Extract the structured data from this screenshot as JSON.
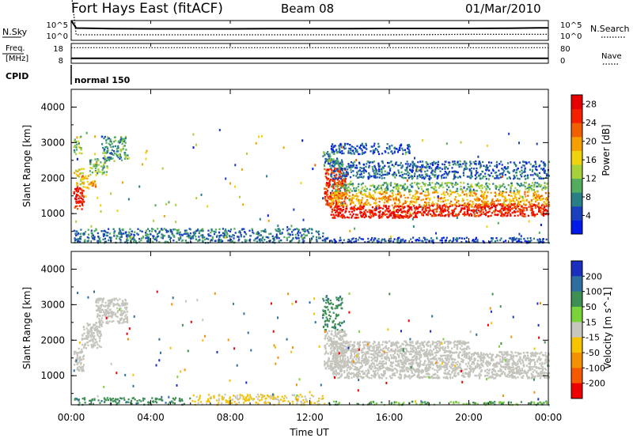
{
  "header": {
    "station": "Fort Hays East (fitACF)",
    "beam": "Beam 08",
    "date": "01/Mar/2010"
  },
  "noise_panel": {
    "left_label": "N.Sky",
    "right_label": "N.Search",
    "left_ticks": [
      "10^5",
      "10^0"
    ],
    "right_ticks": [
      "10^5",
      "10^0"
    ]
  },
  "freq_panel": {
    "left_label_1": "Freq.",
    "left_label_2": "[MHz]",
    "right_label": "Nave",
    "left_ticks": [
      "18",
      "8"
    ],
    "right_ticks": [
      "80",
      "0"
    ]
  },
  "cpid_panel": {
    "label": "CPID",
    "mode_text": "normal 150"
  },
  "colors": {
    "power": [
      "#0019e8",
      "#1a3fbf",
      "#2a7f86",
      "#53ad5e",
      "#a6d13a",
      "#f0d20f",
      "#f5a000",
      "#f06000",
      "#f52000",
      "#e80000"
    ],
    "velocity": [
      "#1a2fbf",
      "#2f6fa0",
      "#3f8f55",
      "#7ad33a",
      "#c7c7c0",
      "#f5c300",
      "#f59000",
      "#f55a00",
      "#ee0000"
    ],
    "ground_scatter": "#c4c4bc"
  },
  "chart_data": [
    {
      "type": "line",
      "name": "noise",
      "x_range_hours": [
        0,
        24
      ],
      "series": [
        {
          "name": "N.Sky",
          "x": [
            0,
            0.25,
            2,
            4,
            6,
            8,
            10,
            12,
            14,
            16,
            18,
            20,
            22,
            23.5,
            24
          ],
          "values": [
            10,
            3.9,
            3.5,
            3.3,
            3.3,
            3.3,
            3.4,
            3.5,
            3.5,
            3.6,
            3.6,
            3.6,
            3.8,
            4.0,
            4.0
          ]
        },
        {
          "name": "N.Search",
          "x": [
            0,
            0.25,
            4,
            8,
            12,
            16,
            20,
            24
          ],
          "values": [
            10,
            1.0,
            1.0,
            1.0,
            1.0,
            1.0,
            1.1,
            1.1
          ]
        }
      ]
    },
    {
      "type": "line",
      "name": "frequency-nave",
      "x_range_hours": [
        0,
        24
      ],
      "series": [
        {
          "name": "Freq.",
          "x": [
            0,
            24
          ],
          "values": [
            10.5,
            10.5
          ]
        },
        {
          "name": "Nave",
          "x": [
            0,
            24
          ],
          "values": [
            63,
            63
          ]
        }
      ]
    },
    {
      "type": "heatmap",
      "name": "power",
      "xlabel": "",
      "ylabel": "Slant Range [km]",
      "x_range_hours": [
        0,
        24
      ],
      "ylim": [
        180,
        4500
      ],
      "y_ticks": [
        1000,
        2000,
        3000,
        4000
      ],
      "colorbar": {
        "label": "Power [dB]",
        "ticks": [
          4,
          8,
          12,
          16,
          20,
          24,
          28
        ],
        "range": [
          0,
          30
        ]
      },
      "bands": [
        {
          "x_start": 0.1,
          "x_end": 0.6,
          "y_low": 1150,
          "y_high": 1800,
          "value": 26
        },
        {
          "x_start": 0.1,
          "x_end": 0.6,
          "y_low": 1800,
          "y_high": 2300,
          "value": 16
        },
        {
          "x_start": 0.5,
          "x_end": 1.2,
          "y_low": 1700,
          "y_high": 2100,
          "value": 19
        },
        {
          "x_start": 0.9,
          "x_end": 1.8,
          "y_low": 2100,
          "y_high": 2600,
          "value": 12
        },
        {
          "x_start": 1.5,
          "x_end": 2.8,
          "y_low": 2500,
          "y_high": 3200,
          "value": 9
        },
        {
          "x_start": 0.1,
          "x_end": 0.5,
          "y_low": 2700,
          "y_high": 3200,
          "value": 12
        },
        {
          "x_start": 12.7,
          "x_end": 13.8,
          "y_low": 1200,
          "y_high": 2300,
          "value": 25
        },
        {
          "x_start": 13.0,
          "x_end": 17.5,
          "y_low": 900,
          "y_high": 1250,
          "value": 27
        },
        {
          "x_start": 17.5,
          "x_end": 24.0,
          "y_low": 950,
          "y_high": 1300,
          "value": 26
        },
        {
          "x_start": 13.0,
          "x_end": 24.0,
          "y_low": 1250,
          "y_high": 1650,
          "value": 19
        },
        {
          "x_start": 13.0,
          "x_end": 24.0,
          "y_low": 1650,
          "y_high": 1900,
          "value": 11
        },
        {
          "x_start": 12.6,
          "x_end": 13.6,
          "y_low": 2300,
          "y_high": 2800,
          "value": 8
        },
        {
          "x_start": 13.0,
          "x_end": 24.0,
          "y_low": 2000,
          "y_high": 2500,
          "value": 6
        },
        {
          "x_start": 13.0,
          "x_end": 17.0,
          "y_low": 2700,
          "y_high": 3000,
          "value": 5
        },
        {
          "x_start": 0.1,
          "x_end": 12.7,
          "y_low": 200,
          "y_high": 600,
          "value": 7
        },
        {
          "x_start": 12.7,
          "x_end": 24.0,
          "y_low": 200,
          "y_high": 350,
          "value": 5
        }
      ]
    },
    {
      "type": "heatmap",
      "name": "velocity",
      "xlabel": "Time UT",
      "ylabel": "Slant Range [km]",
      "x_range_hours": [
        0,
        24
      ],
      "x_ticks": [
        "00:00",
        "04:00",
        "08:00",
        "12:00",
        "16:00",
        "20:00",
        "00:00"
      ],
      "ylim": [
        180,
        4500
      ],
      "y_ticks": [
        1000,
        2000,
        3000,
        4000
      ],
      "colorbar": {
        "label": "Velocity [m s^-1]",
        "ticks": [
          200,
          100,
          50,
          15,
          -15,
          -50,
          -100,
          -200
        ]
      },
      "ground_scatter": "grey",
      "bands": [
        {
          "x_start": 0.1,
          "x_end": 0.6,
          "y_low": 1150,
          "y_high": 1800,
          "value": "gs"
        },
        {
          "x_start": 0.5,
          "x_end": 1.5,
          "y_low": 1800,
          "y_high": 2500,
          "value": "gs"
        },
        {
          "x_start": 1.2,
          "x_end": 2.8,
          "y_low": 2500,
          "y_high": 3200,
          "value": "gs"
        },
        {
          "x_start": 12.7,
          "x_end": 13.8,
          "y_low": 1200,
          "y_high": 2300,
          "value": "gs"
        },
        {
          "x_start": 13.0,
          "x_end": 24.0,
          "y_low": 950,
          "y_high": 1700,
          "value": "gs"
        },
        {
          "x_start": 13.0,
          "x_end": 20.0,
          "y_low": 1700,
          "y_high": 2000,
          "value": "gs"
        },
        {
          "x_start": 12.6,
          "x_end": 13.6,
          "y_low": 2300,
          "y_high": 3300,
          "value": 60
        },
        {
          "x_start": 0.1,
          "x_end": 6.0,
          "y_low": 200,
          "y_high": 400,
          "value": 60
        },
        {
          "x_start": 6.0,
          "x_end": 12.7,
          "y_low": 200,
          "y_high": 500,
          "value": -40
        },
        {
          "x_start": 12.7,
          "x_end": 24.0,
          "y_low": 200,
          "y_high": 300,
          "value": 30
        }
      ]
    }
  ]
}
